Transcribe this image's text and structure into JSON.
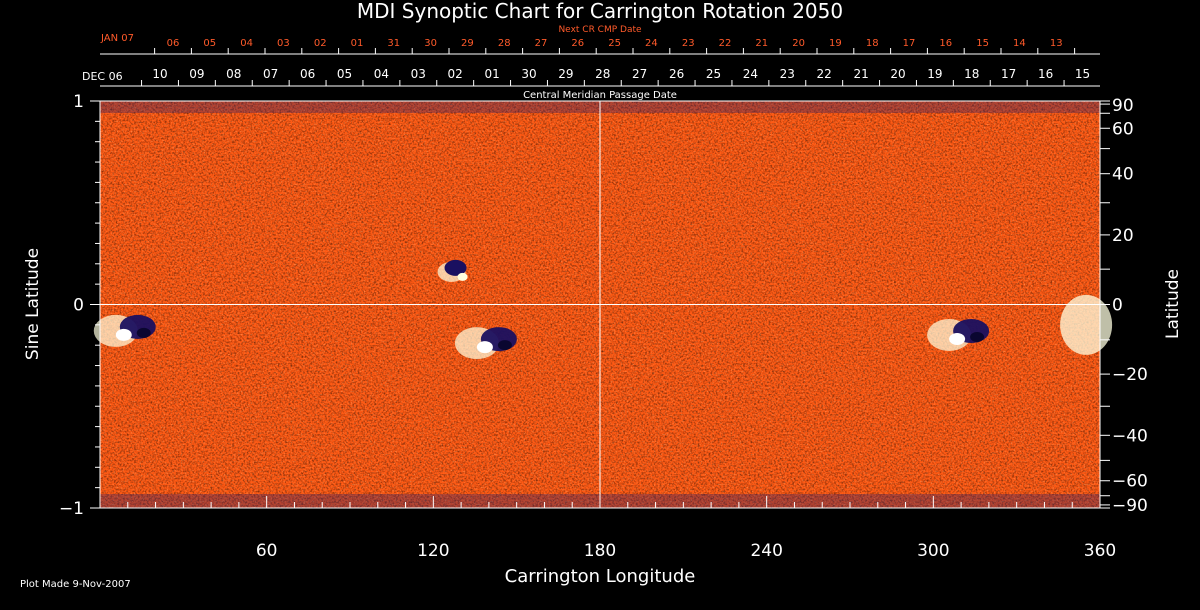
{
  "chart_data": {
    "type": "heatmap",
    "title": "MDI Synoptic Chart for Carrington Rotation 2050",
    "xlabel": "Carrington Longitude",
    "ylabel_left": "Sine Latitude",
    "ylabel_right": "Latitude",
    "xlim": [
      0,
      360
    ],
    "ylim": [
      -1,
      1
    ],
    "x_ticks": [
      60,
      120,
      180,
      240,
      300,
      360
    ],
    "y_ticks_left": [
      {
        "label": "1",
        "value": 1
      },
      {
        "label": "0",
        "value": 0
      },
      {
        "label": "−1",
        "value": -1
      }
    ],
    "y_ticks_right": [
      90,
      60,
      40,
      20,
      0,
      -20,
      -40,
      -60,
      -90
    ],
    "y_tick_labels_right": [
      "90",
      "60",
      "40",
      "20",
      "0",
      "−20",
      "−40",
      "−60",
      "−90"
    ],
    "cmp_axis_label": "Central Meridian Passage Date",
    "cmp_month_label": "DEC 06",
    "cmp_dates": [
      "10",
      "09",
      "08",
      "07",
      "06",
      "05",
      "04",
      "03",
      "02",
      "01",
      "30",
      "29",
      "28",
      "27",
      "26",
      "25",
      "24",
      "23",
      "22",
      "21",
      "20",
      "19",
      "18",
      "17",
      "16",
      "15"
    ],
    "next_cr_label": "Next CR CMP Date",
    "next_cr_month_label": "JAN 07",
    "next_cr_dates": [
      "06",
      "05",
      "04",
      "03",
      "02",
      "01",
      "31",
      "30",
      "29",
      "28",
      "27",
      "26",
      "25",
      "24",
      "23",
      "22",
      "21",
      "20",
      "19",
      "18",
      "17",
      "16",
      "15",
      "14",
      "13"
    ],
    "active_regions": [
      {
        "lon": 10,
        "sinlat": -0.12,
        "polarity": "mixed"
      },
      {
        "lon": 128,
        "sinlat": 0.18,
        "polarity": "negative"
      },
      {
        "lon": 140,
        "sinlat": -0.18,
        "polarity": "mixed"
      },
      {
        "lon": 310,
        "sinlat": -0.14,
        "polarity": "mixed"
      },
      {
        "lon": 355,
        "sinlat": -0.1,
        "polarity": "positive"
      }
    ],
    "colors": {
      "background": "#ff5a14",
      "positive": "#ffffe0",
      "negative": "#1a1060",
      "axes": "#ffffff",
      "top_axis_text": "#ff5a2a"
    },
    "grid": "center cross lines"
  },
  "footer": {
    "plot_made": "Plot Made  9-Nov-2007"
  }
}
